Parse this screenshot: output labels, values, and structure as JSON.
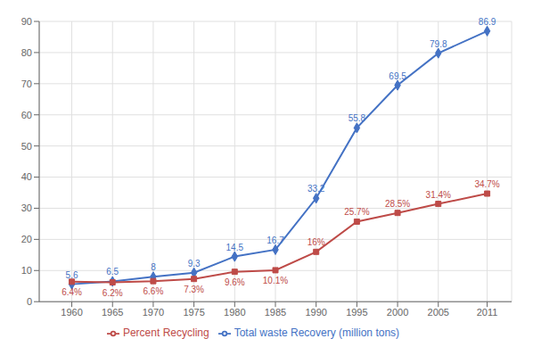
{
  "chart_data": {
    "type": "line",
    "x": [
      1960,
      1965,
      1970,
      1975,
      1980,
      1985,
      1990,
      1995,
      2000,
      2005,
      2011
    ],
    "xlim": [
      1956,
      2014
    ],
    "xticks": [
      1960,
      1965,
      1970,
      1975,
      1980,
      1985,
      1990,
      1995,
      2000,
      2005,
      2011
    ],
    "ylim": [
      0,
      90
    ],
    "yticks": [
      0,
      10,
      20,
      30,
      40,
      50,
      60,
      70,
      80,
      90
    ],
    "grid": true,
    "legend": "bottom",
    "data_labels": true,
    "series": [
      {
        "name": "Total waste Recovery (million tons)",
        "color": "#4472C4",
        "marker": "diamond",
        "values": [
          5.6,
          6.5,
          8.0,
          9.3,
          14.5,
          16.7,
          33.2,
          55.8,
          69.5,
          79.8,
          86.9
        ]
      },
      {
        "name": "Percent Recycling",
        "color": "#BE4B48",
        "marker": "square",
        "values": [
          6.4,
          6.2,
          6.6,
          7.3,
          9.6,
          10.1,
          16.0,
          25.7,
          28.5,
          31.4,
          34.7
        ],
        "value_labels": [
          "6.4%",
          "6.2%",
          "6.6%",
          "7.3%",
          "9.6%",
          "10.1%",
          "16%",
          "25.7%",
          "28.5%",
          "31.4%",
          "34.7%"
        ]
      }
    ]
  }
}
